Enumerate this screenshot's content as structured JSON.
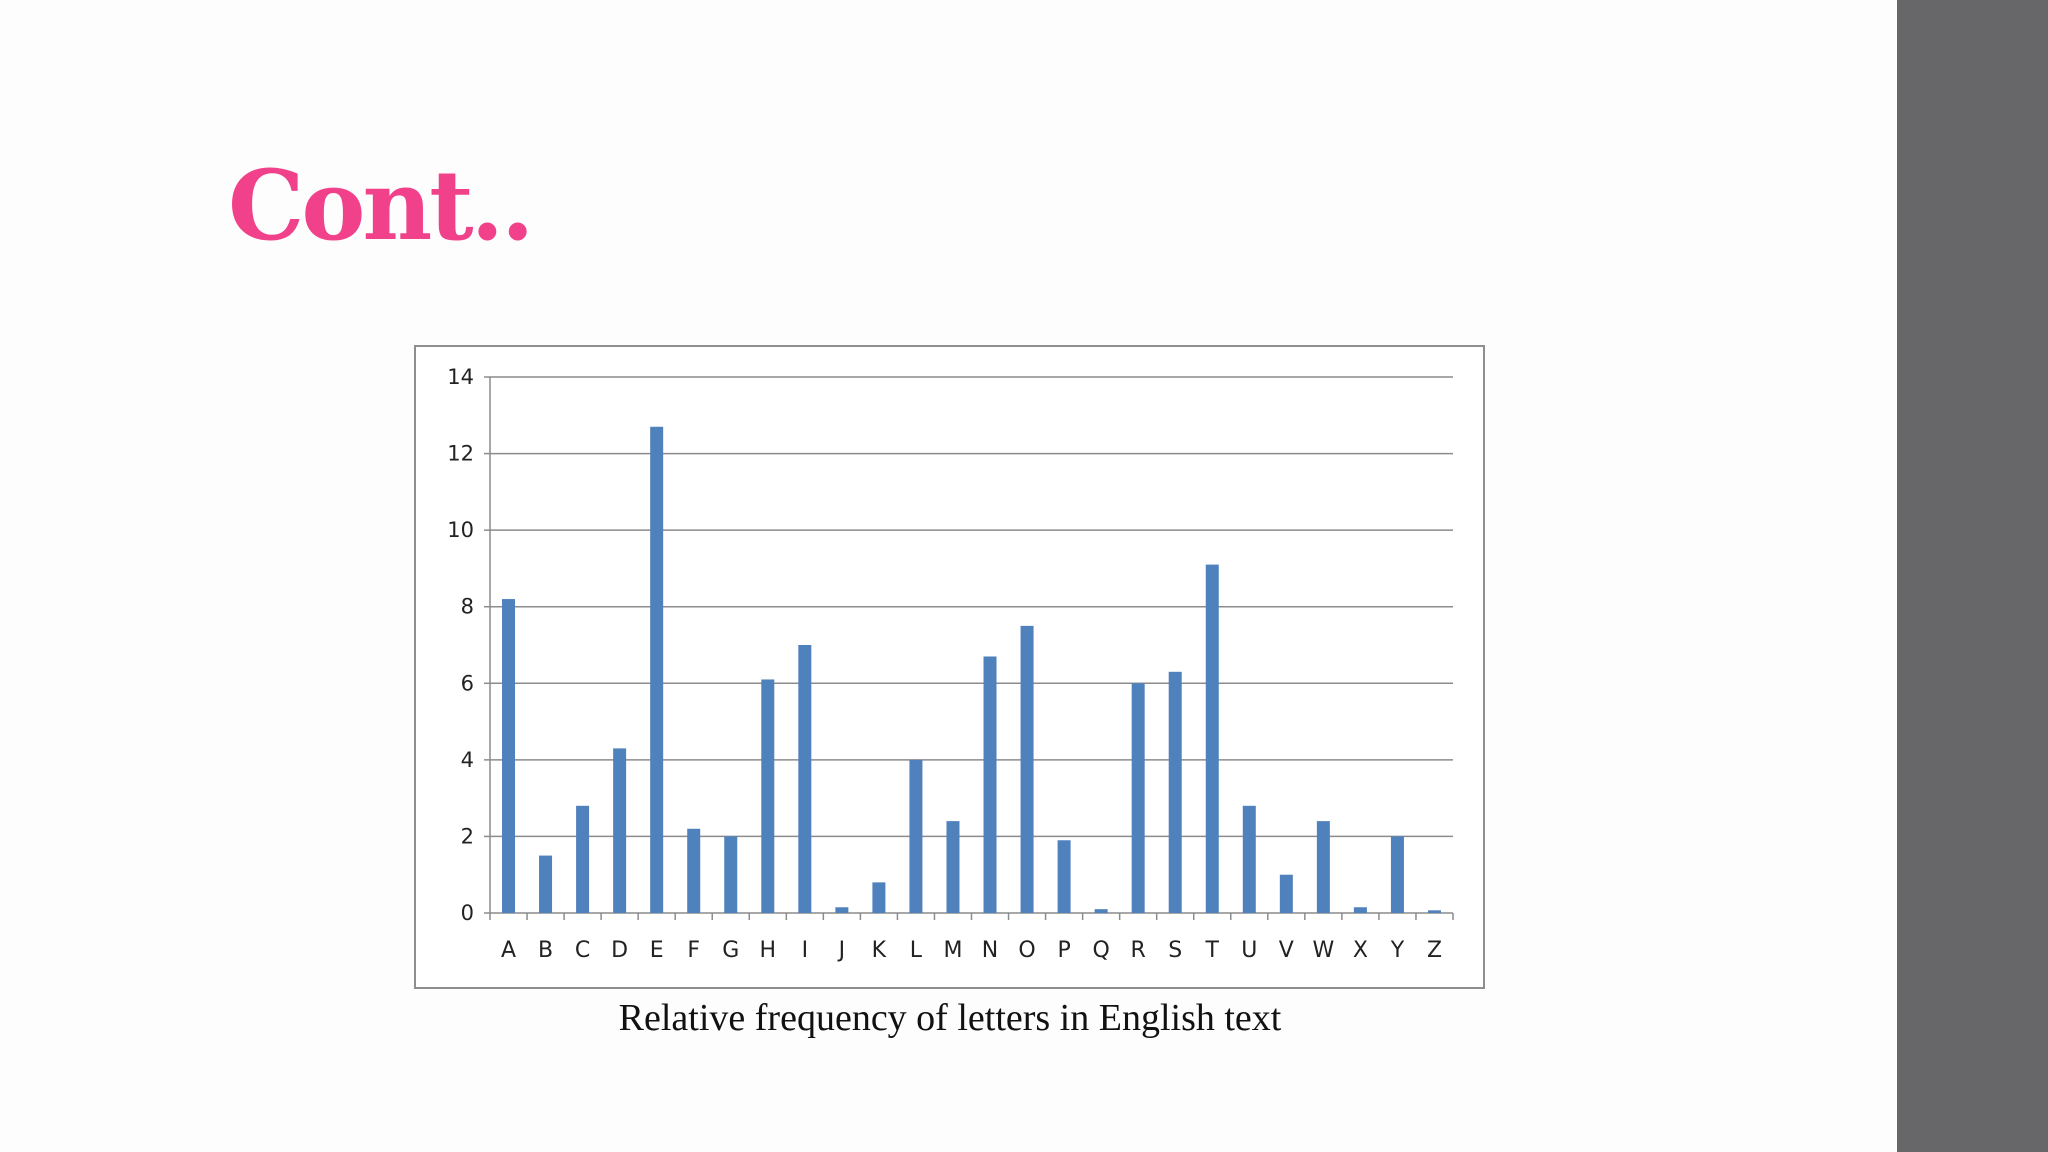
{
  "slide": {
    "title": "Cont..",
    "title_color": "#f0418a",
    "side_panel_color": "#676668"
  },
  "chart_data": {
    "type": "bar",
    "caption": "Relative frequency of letters in English text",
    "categories": [
      "A",
      "B",
      "C",
      "D",
      "E",
      "F",
      "G",
      "H",
      "I",
      "J",
      "K",
      "L",
      "M",
      "N",
      "O",
      "P",
      "Q",
      "R",
      "S",
      "T",
      "U",
      "V",
      "W",
      "X",
      "Y",
      "Z"
    ],
    "series": [
      {
        "values": [
          8.2,
          1.5,
          2.8,
          4.3,
          12.7,
          2.2,
          2.0,
          6.1,
          7.0,
          0.15,
          0.8,
          4.0,
          2.4,
          6.7,
          7.5,
          1.9,
          0.1,
          6.0,
          6.3,
          9.1,
          2.8,
          1.0,
          2.4,
          0.15,
          2.0,
          0.07
        ],
        "color": "#4f81bd"
      }
    ],
    "ylim": [
      0,
      14
    ],
    "yticks": [
      0,
      2,
      4,
      6,
      8,
      10,
      12,
      14
    ],
    "grid": true,
    "legend": "none"
  }
}
